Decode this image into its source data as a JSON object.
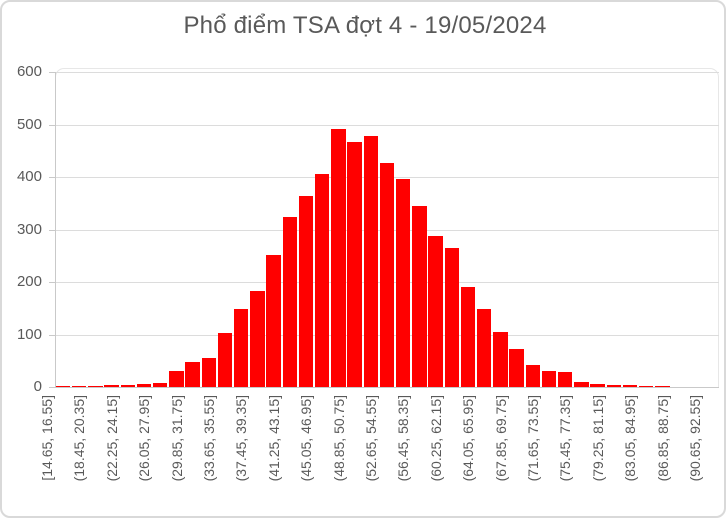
{
  "chart_data": {
    "type": "bar",
    "subtype": "histogram",
    "title": "Phổ điểm TSA đợt 4 - 19/05/2024",
    "bar_color": "#FF0000",
    "text_color": "#595959",
    "gridline_color": "#DCDCDC",
    "axis_color": "#C9C9C9",
    "grid": true,
    "legend": "none",
    "ylim": [
      0,
      600
    ],
    "y_ticks": [
      0,
      100,
      200,
      300,
      400,
      500,
      600
    ],
    "bins_total": 41,
    "bin_width": 1.9,
    "x_start": 14.65,
    "x_end": 92.55,
    "x_tick_labels_every_other_bin": [
      "[14.65, 16.55]",
      "(18.45, 20.35]",
      "(22.25, 24.15]",
      "(26.05, 27.95]",
      "(29.85, 31.75]",
      "(33.65, 35.55]",
      "(37.45, 39.35]",
      "(41.25, 43.15]",
      "(45.05, 46.95]",
      "(48.85, 50.75]",
      "(52.65, 54.55]",
      "(56.45, 58.35]",
      "(60.25, 62.15]",
      "(64.05, 65.95]",
      "(67.85, 69.75]",
      "(71.65, 73.55]",
      "(75.45, 77.35]",
      "(79.25, 81.15]",
      "(83.05, 84.95]",
      "(86.85, 88.75]",
      "(90.65, 92.55]"
    ],
    "values": [
      1,
      1,
      2,
      3,
      3,
      5,
      7,
      30,
      47,
      55,
      103,
      149,
      183,
      252,
      324,
      363,
      405,
      491,
      466,
      478,
      427,
      396,
      345,
      288,
      264,
      190,
      149,
      104,
      72,
      42,
      30,
      28,
      9,
      5,
      3,
      3,
      2,
      2,
      0,
      0,
      0
    ]
  }
}
